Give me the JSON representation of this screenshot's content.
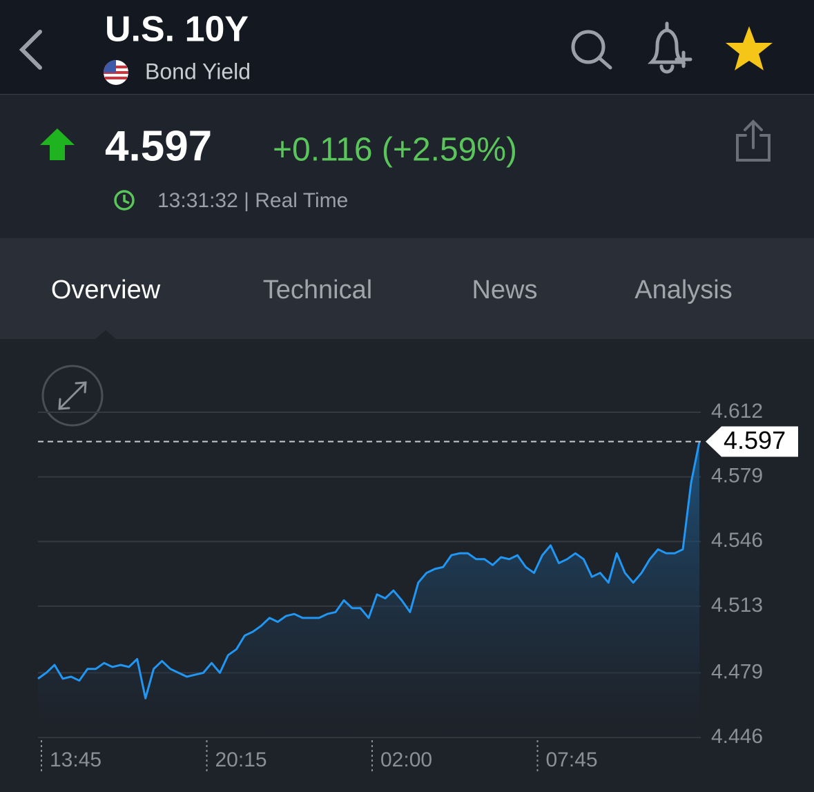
{
  "header": {
    "title": "U.S. 10Y",
    "subtitle": "Bond Yield"
  },
  "quote": {
    "price": "4.597",
    "change": "+0.116 (+2.59%)",
    "time": "13:31:32 | Real Time"
  },
  "tabs": [
    "Overview",
    "Technical",
    "News",
    "Analysis"
  ],
  "chart_data": {
    "type": "line",
    "series": [
      {
        "color": "#2196f3",
        "values": [
          4.476,
          4.479,
          4.483,
          4.476,
          4.477,
          4.475,
          4.481,
          4.481,
          4.484,
          4.482,
          4.483,
          4.482,
          4.486,
          4.466,
          4.481,
          4.485,
          4.481,
          4.479,
          4.477,
          4.478,
          4.479,
          4.484,
          4.479,
          4.488,
          4.491,
          4.498,
          4.5,
          4.503,
          4.507,
          4.505,
          4.508,
          4.509,
          4.507,
          4.507,
          4.507,
          4.509,
          4.51,
          4.516,
          4.512,
          4.512,
          4.507,
          4.519,
          4.517,
          4.521,
          4.516,
          4.51,
          4.525,
          4.53,
          4.532,
          4.533,
          4.539,
          4.54,
          4.54,
          4.537,
          4.537,
          4.534,
          4.538,
          4.537,
          4.539,
          4.533,
          4.53,
          4.539,
          4.544,
          4.535,
          4.537,
          4.54,
          4.537,
          4.528,
          4.53,
          4.525,
          4.54,
          4.53,
          4.525,
          4.53,
          4.537,
          4.542,
          4.54,
          4.54,
          4.542,
          4.576,
          4.597
        ]
      }
    ],
    "xlim": [
      0,
      80
    ],
    "xticks": [
      {
        "value": 0,
        "label": "13:45"
      },
      {
        "value": 20,
        "label": "20:15"
      },
      {
        "value": 40,
        "label": "02:00"
      },
      {
        "value": 60,
        "label": "07:45"
      }
    ],
    "ylim": [
      4.446,
      4.612
    ],
    "yticks": [
      4.446,
      4.479,
      4.513,
      4.546,
      4.579,
      4.612
    ],
    "grid": true
  }
}
